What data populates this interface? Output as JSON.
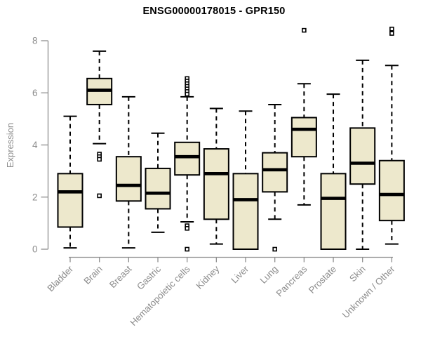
{
  "chart_data": {
    "type": "boxplot",
    "title": "ENSG00000178015 - GPR150",
    "ylabel": "Expression",
    "xlabel": "",
    "ylim": [
      0,
      8
    ],
    "yticks": [
      0,
      2,
      4,
      6,
      8
    ],
    "grid": false,
    "legend": "none",
    "box_fill_color": "#EDE8CC",
    "box_line_color": "#000000",
    "axis_color": "#8E8E8E",
    "label_color": "#8C8C8C",
    "outlier_fill_color": "#FFFFFF",
    "categories": [
      "Bladder",
      "Brain",
      "Breast",
      "Gastric",
      "Hematopoietic cells",
      "Kidney",
      "Liver",
      "Lung",
      "Pancreas",
      "Prostate",
      "Skin",
      "Unknown / Other"
    ],
    "series": [
      {
        "category": "Bladder",
        "whisker_low": 0.05,
        "q1": 0.85,
        "median": 2.2,
        "q3": 2.9,
        "whisker_high": 5.1,
        "outliers": []
      },
      {
        "category": "Brain",
        "whisker_low": 4.05,
        "q1": 5.55,
        "median": 6.1,
        "q3": 6.55,
        "whisker_high": 7.6,
        "outliers": [
          3.65,
          3.55,
          3.45,
          2.05
        ]
      },
      {
        "category": "Breast",
        "whisker_low": 0.05,
        "q1": 1.85,
        "median": 2.45,
        "q3": 3.55,
        "whisker_high": 5.85,
        "outliers": []
      },
      {
        "category": "Gastric",
        "whisker_low": 0.65,
        "q1": 1.55,
        "median": 2.15,
        "q3": 3.1,
        "whisker_high": 4.45,
        "outliers": []
      },
      {
        "category": "Hematopoietic cells",
        "whisker_low": 1.05,
        "q1": 2.85,
        "median": 3.55,
        "q3": 4.1,
        "whisker_high": 5.85,
        "outliers": [
          6.55,
          6.45,
          6.35,
          6.25,
          6.15,
          6.05,
          5.95,
          0.9,
          0.8,
          0.0
        ]
      },
      {
        "category": "Kidney",
        "whisker_low": 0.2,
        "q1": 1.15,
        "median": 2.9,
        "q3": 3.85,
        "whisker_high": 5.4,
        "outliers": []
      },
      {
        "category": "Liver",
        "whisker_low": 0.0,
        "q1": 0.0,
        "median": 1.9,
        "q3": 2.9,
        "whisker_high": 5.3,
        "outliers": []
      },
      {
        "category": "Lung",
        "whisker_low": 1.15,
        "q1": 2.2,
        "median": 3.05,
        "q3": 3.7,
        "whisker_high": 5.55,
        "outliers": [
          0.0
        ]
      },
      {
        "category": "Pancreas",
        "whisker_low": 1.7,
        "q1": 3.55,
        "median": 4.6,
        "q3": 5.05,
        "whisker_high": 6.35,
        "outliers": [
          8.4
        ]
      },
      {
        "category": "Prostate",
        "whisker_low": 0.0,
        "q1": 0.0,
        "median": 1.95,
        "q3": 2.9,
        "whisker_high": 5.95,
        "outliers": []
      },
      {
        "category": "Skin",
        "whisker_low": 0.0,
        "q1": 2.5,
        "median": 3.3,
        "q3": 4.65,
        "whisker_high": 7.25,
        "outliers": []
      },
      {
        "category": "Unknown / Other",
        "whisker_low": 0.2,
        "q1": 1.1,
        "median": 2.1,
        "q3": 3.4,
        "whisker_high": 7.05,
        "outliers": [
          8.45,
          8.28
        ]
      }
    ]
  }
}
